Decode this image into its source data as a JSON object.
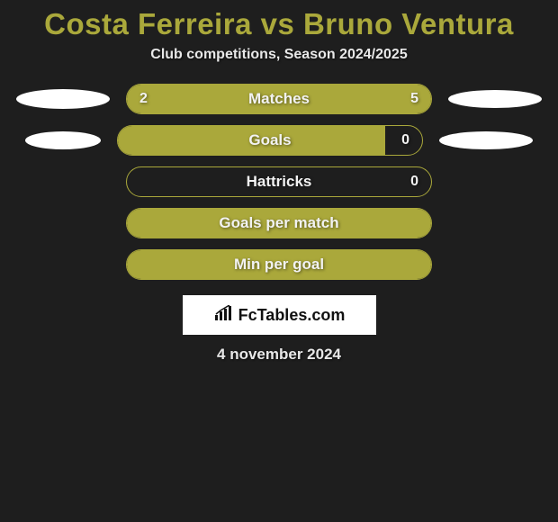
{
  "background_color": "#1e1e1e",
  "accent_color": "#aaa83b",
  "text_color": "#e8e8e8",
  "title": "Costa Ferreira vs Bruno Ventura",
  "subtitle": "Club competitions, Season 2024/2025",
  "date": "4 november 2024",
  "logo_text": "FcTables.com",
  "rows": [
    {
      "label": "Matches",
      "left_value": "2",
      "right_value": "5",
      "left_pct": 28,
      "right_pct": 72,
      "ellipse_left_w": 104,
      "ellipse_left_h": 22,
      "ellipse_right_w": 104,
      "ellipse_right_h": 20,
      "show_values": true,
      "show_ellipses": true
    },
    {
      "label": "Goals",
      "left_value": "",
      "right_value": "0",
      "left_pct": 88,
      "right_pct": 0,
      "ellipse_left_w": 84,
      "ellipse_left_h": 20,
      "ellipse_right_w": 104,
      "ellipse_right_h": 20,
      "show_values": true,
      "show_ellipses": true
    },
    {
      "label": "Hattricks",
      "left_value": "",
      "right_value": "0",
      "left_pct": 0,
      "right_pct": 0,
      "show_values": true,
      "show_ellipses": false
    },
    {
      "label": "Goals per match",
      "left_value": "",
      "right_value": "",
      "left_pct": 100,
      "right_pct": 0,
      "full_fill": true,
      "show_values": false,
      "show_ellipses": false
    },
    {
      "label": "Min per goal",
      "left_value": "",
      "right_value": "",
      "left_pct": 100,
      "right_pct": 0,
      "full_fill": true,
      "show_values": false,
      "show_ellipses": false
    }
  ]
}
